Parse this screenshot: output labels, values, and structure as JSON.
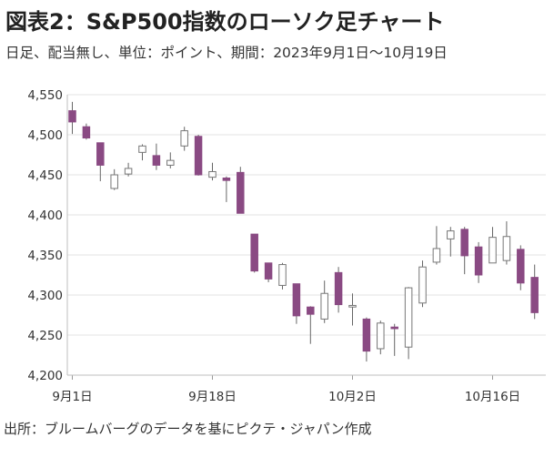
{
  "chart_data": {
    "type": "candlestick",
    "title": "図表2：S&P500指数のローソク足チャート",
    "subtitle": "日足、配当無し、単位：ポイント、期間：2023年9月1日～10月19日",
    "source": "出所：ブルームバーグのデータを基にピクテ・ジャパン作成",
    "ylim": [
      4200,
      4550
    ],
    "yticks": [
      "4,200",
      "4,250",
      "4,300",
      "4,350",
      "4,400",
      "4,450",
      "4,500",
      "4,550"
    ],
    "ytick_values": [
      4200,
      4250,
      4300,
      4350,
      4400,
      4450,
      4500,
      4550
    ],
    "xticks": [
      {
        "label": "9月1日",
        "index": 0
      },
      {
        "label": "9月18日",
        "index": 10
      },
      {
        "label": "10月2日",
        "index": 20
      },
      {
        "label": "10月16日",
        "index": 30
      }
    ],
    "colors": {
      "up": "#ffffff",
      "down": "#8a4a83",
      "outline": "#777777",
      "wick": "#666666"
    },
    "candles": [
      {
        "open": 4530,
        "high": 4541,
        "low": 4501,
        "close": 4516
      },
      {
        "open": 4510,
        "high": 4514,
        "low": 4494,
        "close": 4496
      },
      {
        "open": 4490,
        "high": 4490,
        "low": 4442,
        "close": 4462
      },
      {
        "open": 4433,
        "high": 4457,
        "low": 4431,
        "close": 4450
      },
      {
        "open": 4451,
        "high": 4465,
        "low": 4448,
        "close": 4458
      },
      {
        "open": 4478,
        "high": 4488,
        "low": 4468,
        "close": 4486
      },
      {
        "open": 4474,
        "high": 4489,
        "low": 4456,
        "close": 4462
      },
      {
        "open": 4462,
        "high": 4478,
        "low": 4458,
        "close": 4468
      },
      {
        "open": 4486,
        "high": 4510,
        "low": 4480,
        "close": 4505
      },
      {
        "open": 4498,
        "high": 4500,
        "low": 4449,
        "close": 4450
      },
      {
        "open": 4447,
        "high": 4465,
        "low": 4443,
        "close": 4454
      },
      {
        "open": 4446,
        "high": 4448,
        "low": 4416,
        "close": 4443
      },
      {
        "open": 4453,
        "high": 4460,
        "low": 4402,
        "close": 4402
      },
      {
        "open": 4376,
        "high": 4376,
        "low": 4328,
        "close": 4330
      },
      {
        "open": 4340,
        "high": 4340,
        "low": 4316,
        "close": 4320
      },
      {
        "open": 4312,
        "high": 4340,
        "low": 4307,
        "close": 4338
      },
      {
        "open": 4314,
        "high": 4314,
        "low": 4264,
        "close": 4274
      },
      {
        "open": 4285,
        "high": 4286,
        "low": 4239,
        "close": 4276
      },
      {
        "open": 4270,
        "high": 4318,
        "low": 4265,
        "close": 4302
      },
      {
        "open": 4328,
        "high": 4335,
        "low": 4278,
        "close": 4288
      },
      {
        "open": 4285,
        "high": 4302,
        "low": 4262,
        "close": 4287
      },
      {
        "open": 4270,
        "high": 4272,
        "low": 4217,
        "close": 4230
      },
      {
        "open": 4233,
        "high": 4268,
        "low": 4226,
        "close": 4265
      },
      {
        "open": 4260,
        "high": 4264,
        "low": 4224,
        "close": 4258
      },
      {
        "open": 4235,
        "high": 4310,
        "low": 4220,
        "close": 4309
      },
      {
        "open": 4290,
        "high": 4343,
        "low": 4285,
        "close": 4335
      },
      {
        "open": 4341,
        "high": 4386,
        "low": 4338,
        "close": 4358
      },
      {
        "open": 4370,
        "high": 4385,
        "low": 4348,
        "close": 4380
      },
      {
        "open": 4382,
        "high": 4385,
        "low": 4326,
        "close": 4349
      },
      {
        "open": 4360,
        "high": 4366,
        "low": 4315,
        "close": 4325
      },
      {
        "open": 4340,
        "high": 4385,
        "low": 4340,
        "close": 4372
      },
      {
        "open": 4343,
        "high": 4392,
        "low": 4338,
        "close": 4373
      },
      {
        "open": 4357,
        "high": 4362,
        "low": 4306,
        "close": 4315
      },
      {
        "open": 4322,
        "high": 4338,
        "low": 4270,
        "close": 4278
      }
    ]
  }
}
